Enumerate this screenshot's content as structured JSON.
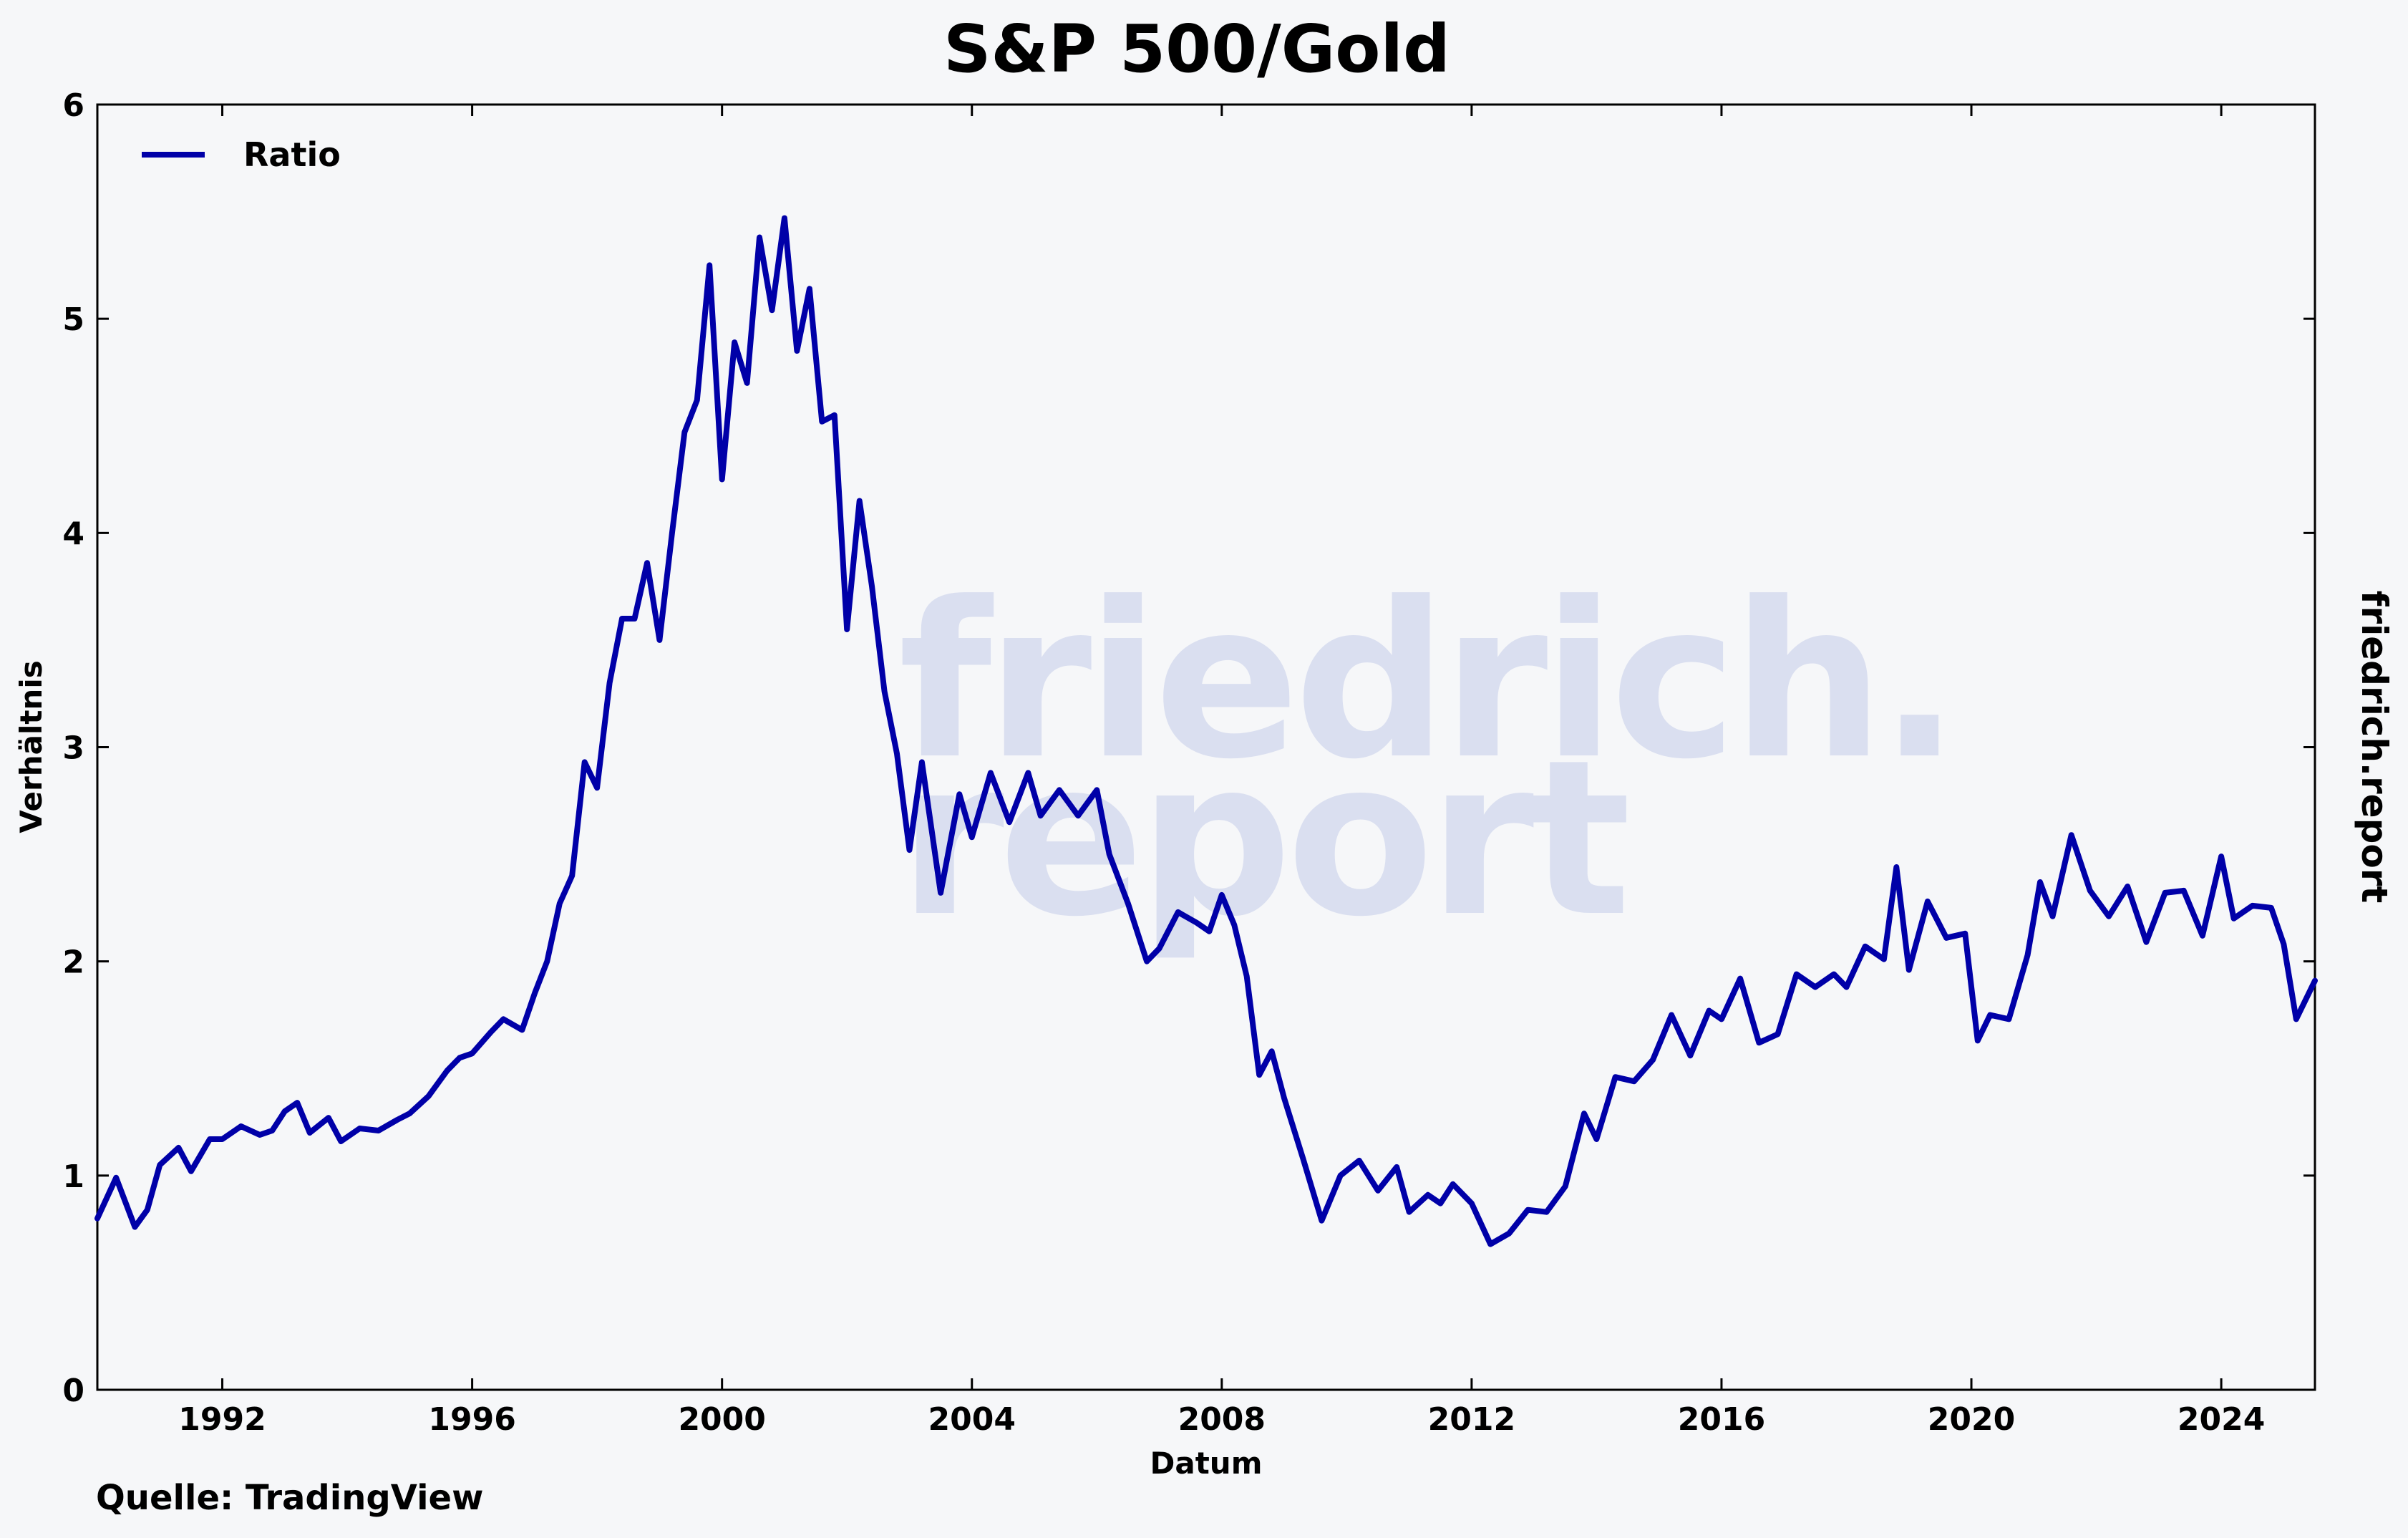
{
  "chart_data": {
    "type": "line",
    "title": "S&P 500/Gold",
    "xlabel": "Datum",
    "ylabel": "Verhältnis",
    "xlim": [
      1990.0,
      2025.5
    ],
    "ylim": [
      0,
      6
    ],
    "x_ticks": [
      1992,
      1996,
      2000,
      2004,
      2008,
      2012,
      2016,
      2020,
      2024
    ],
    "y_ticks": [
      0,
      1,
      2,
      3,
      4,
      5,
      6
    ],
    "grid": false,
    "legend": "top-left",
    "series": [
      {
        "name": "Ratio",
        "color": "#0000a8",
        "x": [
          1990.0,
          1990.3,
          1990.6,
          1990.8,
          1991.0,
          1991.3,
          1991.5,
          1991.8,
          1992.0,
          1992.3,
          1992.6,
          1992.8,
          1993.0,
          1993.2,
          1993.4,
          1993.7,
          1993.9,
          1994.2,
          1994.5,
          1994.8,
          1995.0,
          1995.3,
          1995.6,
          1995.8,
          1996.0,
          1996.3,
          1996.5,
          1996.8,
          1997.0,
          1997.2,
          1997.4,
          1997.6,
          1997.8,
          1998.0,
          1998.2,
          1998.4,
          1998.6,
          1998.8,
          1999.0,
          1999.2,
          1999.4,
          1999.6,
          1999.8,
          2000.0,
          2000.2,
          2000.4,
          2000.6,
          2000.8,
          2001.0,
          2001.2,
          2001.4,
          2001.6,
          2001.8,
          2002.0,
          2002.2,
          2002.4,
          2002.6,
          2002.8,
          2003.0,
          2003.2,
          2003.5,
          2003.8,
          2004.0,
          2004.3,
          2004.6,
          2004.9,
          2005.1,
          2005.4,
          2005.7,
          2006.0,
          2006.2,
          2006.5,
          2006.8,
          2007.0,
          2007.3,
          2007.6,
          2007.8,
          2008.0,
          2008.2,
          2008.4,
          2008.6,
          2008.8,
          2009.0,
          2009.3,
          2009.6,
          2009.9,
          2010.2,
          2010.5,
          2010.8,
          2011.0,
          2011.3,
          2011.5,
          2011.7,
          2012.0,
          2012.3,
          2012.6,
          2012.9,
          2013.2,
          2013.5,
          2013.8,
          2014.0,
          2014.3,
          2014.6,
          2014.9,
          2015.2,
          2015.5,
          2015.8,
          2016.0,
          2016.3,
          2016.6,
          2016.9,
          2017.2,
          2017.5,
          2017.8,
          2018.0,
          2018.3,
          2018.6,
          2018.8,
          2019.0,
          2019.3,
          2019.6,
          2019.9,
          2020.1,
          2020.3,
          2020.6,
          2020.9,
          2021.1,
          2021.3,
          2021.6,
          2021.9,
          2022.2,
          2022.5,
          2022.8,
          2023.1,
          2023.4,
          2023.7,
          2024.0,
          2024.2,
          2024.5,
          2024.8,
          2025.0,
          2025.2,
          2025.5
        ],
        "values": [
          0.8,
          0.99,
          0.76,
          0.84,
          1.05,
          1.13,
          1.02,
          1.17,
          1.17,
          1.23,
          1.19,
          1.21,
          1.3,
          1.34,
          1.2,
          1.27,
          1.16,
          1.22,
          1.21,
          1.26,
          1.29,
          1.37,
          1.49,
          1.55,
          1.57,
          1.67,
          1.73,
          1.68,
          1.85,
          2.0,
          2.27,
          2.4,
          2.93,
          2.81,
          3.3,
          3.6,
          3.6,
          3.86,
          3.5,
          4.0,
          4.47,
          4.62,
          5.25,
          4.25,
          4.89,
          4.7,
          5.38,
          5.04,
          5.47,
          4.85,
          5.14,
          4.52,
          4.55,
          3.55,
          4.15,
          3.75,
          3.26,
          2.97,
          2.52,
          2.93,
          2.32,
          2.78,
          2.58,
          2.88,
          2.65,
          2.88,
          2.68,
          2.8,
          2.68,
          2.8,
          2.5,
          2.27,
          2.0,
          2.06,
          2.23,
          2.18,
          2.14,
          2.31,
          2.17,
          1.93,
          1.47,
          1.58,
          1.36,
          1.08,
          0.79,
          1.0,
          1.07,
          0.93,
          1.04,
          0.83,
          0.91,
          0.87,
          0.96,
          0.87,
          0.68,
          0.73,
          0.84,
          0.83,
          0.95,
          1.29,
          1.17,
          1.46,
          1.44,
          1.54,
          1.75,
          1.56,
          1.77,
          1.73,
          1.92,
          1.62,
          1.66,
          1.94,
          1.88,
          1.94,
          1.88,
          2.07,
          2.01,
          2.44,
          1.96,
          2.28,
          2.11,
          2.13,
          1.63,
          1.75,
          1.73,
          2.03,
          2.37,
          2.21,
          2.59,
          2.33,
          2.21,
          2.35,
          2.09,
          2.32,
          2.33,
          2.12,
          2.49,
          2.2,
          2.26,
          2.25,
          2.08,
          1.73,
          1.91
        ]
      }
    ],
    "source_note": "Quelle: TradingView",
    "side_brand": "friedrich.report",
    "watermark_lines": [
      "friedrich.",
      "report"
    ]
  }
}
